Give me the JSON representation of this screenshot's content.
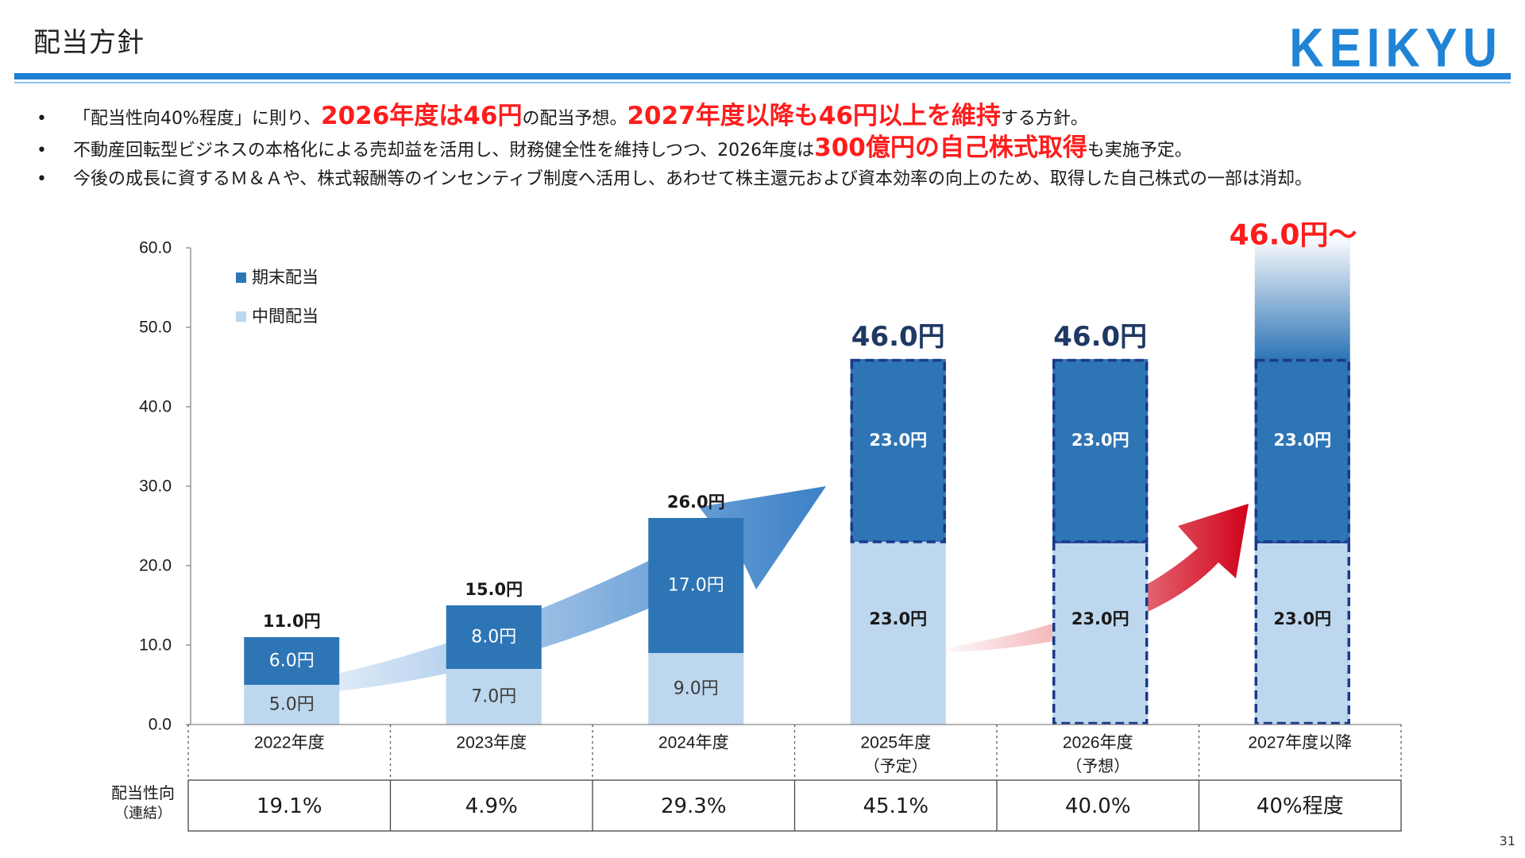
{
  "header": {
    "title": "配当方針",
    "logo": "KEIKYU",
    "page_number": "31"
  },
  "bullets": [
    {
      "marker": "•",
      "parts": [
        {
          "text": "「配当性向40%程度」に則り、",
          "hl": false
        },
        {
          "text": "2026年度は46円",
          "hl": true
        },
        {
          "text": "の配当予想。",
          "hl": false
        },
        {
          "text": "2027年度以降も46円以上を維持",
          "hl": true
        },
        {
          "text": "する方針。",
          "hl": false
        }
      ]
    },
    {
      "marker": "•",
      "parts": [
        {
          "text": "不動産回転型ビジネスの本格化による売却益を活用し、財務健全性を維持しつつ、2026年度は",
          "hl": false
        },
        {
          "text": "300億円の自己株式取得",
          "hl": true
        },
        {
          "text": "も実施予定。",
          "hl": false
        }
      ]
    },
    {
      "marker": "•",
      "parts": [
        {
          "text": "今後の成長に資するＭ＆Ａや、株式報酬等のインセンティブ制度へ活用し、あわせて株主還元および資本効率の向上のため、取得した自己株式の一部は消却。",
          "hl": false
        }
      ]
    }
  ],
  "colors": {
    "accent": "#1c7fd4",
    "highlight": "#ff1c1c",
    "dark_bar": "#2e75b6",
    "light_bar": "#bdd7ee",
    "dash_border": "#1a3a8a",
    "total_label_projected": "#1f3864",
    "arrow_red": "#d0021b"
  },
  "chart_data": {
    "type": "bar",
    "stacked": true,
    "categories": [
      "2022年度",
      "2023年度",
      "2024年度",
      "2025年度",
      "2026年度",
      "2027年度以降"
    ],
    "category_sublabels": [
      "",
      "",
      "",
      "（予定）",
      "（予想）",
      ""
    ],
    "series": [
      {
        "name": "中間配当",
        "values": [
          5.0,
          7.0,
          9.0,
          23.0,
          23.0,
          23.0
        ],
        "labels": [
          "5.0円",
          "7.0円",
          "9.0円",
          "23.0円",
          "23.0円",
          "23.0円"
        ]
      },
      {
        "name": "期末配当",
        "values": [
          6.0,
          8.0,
          17.0,
          23.0,
          23.0,
          23.0
        ],
        "labels": [
          "6.0円",
          "8.0円",
          "17.0円",
          "23.0円",
          "23.0円",
          "23.0円"
        ]
      }
    ],
    "totals": [
      11.0,
      15.0,
      26.0,
      46.0,
      46.0,
      46.0
    ],
    "total_labels": [
      "11.0円",
      "15.0円",
      "26.0円",
      "46.0円",
      "46.0円",
      ""
    ],
    "dashed_interim": [
      false,
      false,
      false,
      false,
      true,
      true
    ],
    "dashed_year_end": [
      false,
      false,
      false,
      true,
      true,
      true
    ],
    "annotation": "46.0円～",
    "ylim": [
      0,
      60
    ],
    "yticks": [
      0,
      10,
      20,
      30,
      40,
      50,
      60
    ],
    "ytick_labels": [
      "0.0",
      "10.0",
      "20.0",
      "30.0",
      "40.0",
      "50.0",
      "60.0"
    ],
    "legend_position": "top-left",
    "grid": false,
    "payout_ratio": {
      "label": "配当性向",
      "sublabel": "（連結）",
      "values": [
        "19.1%",
        "4.9%",
        "29.3%",
        "45.1%",
        "40.0%",
        "40%程度"
      ]
    }
  }
}
